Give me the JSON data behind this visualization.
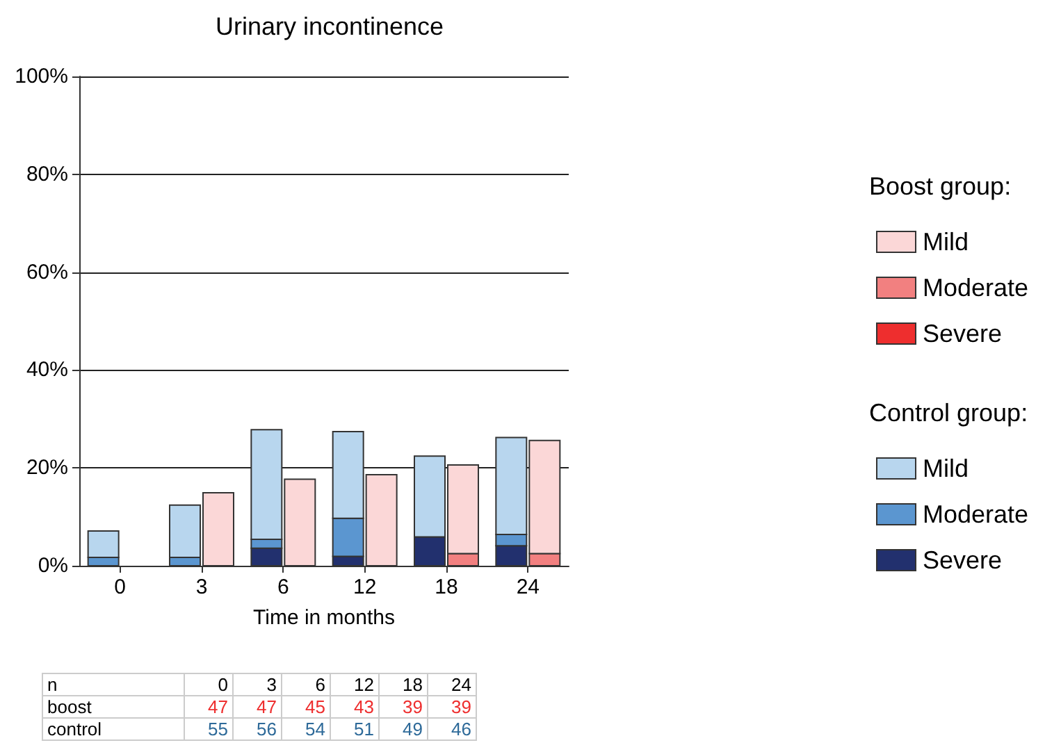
{
  "chart_data": {
    "type": "bar",
    "title": "Urinary incontinence",
    "xlabel": "Time in months",
    "categories": [
      "0",
      "3",
      "6",
      "12",
      "18",
      "24"
    ],
    "legend_title": [
      "Boost group:",
      "Control group:"
    ],
    "series": [
      {
        "name": "Severe",
        "color": "#ee2e2e",
        "values": [
          null,
          null,
          null,
          null,
          null,
          null
        ],
        "base": [
          null,
          null,
          null,
          null,
          null,
          null
        ]
      },
      {
        "name": "Moderate",
        "color": "#f28080",
        "values": [
          null,
          null,
          null,
          null,
          2.5,
          2.5
        ],
        "base": [
          null,
          null,
          null,
          null,
          0,
          0
        ]
      },
      {
        "name": "Mild",
        "color": "#fbd7d7",
        "values": [
          null,
          14.9,
          17.7,
          18.6,
          18.1,
          23.1
        ],
        "base": [
          null,
          0,
          0,
          0,
          2.5,
          2.5
        ]
      },
      {
        "name": "Severe",
        "color": "#22306e",
        "values": [
          null,
          null,
          3.6,
          1.9,
          5.9,
          4.1
        ],
        "base": [
          null,
          null,
          0,
          0,
          0,
          0
        ]
      },
      {
        "name": "Moderate",
        "color": "#5b96d0",
        "values": [
          1.7,
          1.7,
          1.8,
          7.8,
          null,
          2.3
        ],
        "base": [
          0,
          0,
          3.6,
          1.9,
          null,
          4.1
        ]
      },
      {
        "name": "Mild",
        "color": "#b8d6ee",
        "values": [
          5.4,
          10.7,
          22.4,
          17.7,
          16.5,
          19.8
        ],
        "base": [
          1.7,
          1.7,
          5.4,
          9.7,
          5.9,
          6.4
        ]
      }
    ],
    "ylim": [
      0,
      100
    ],
    "yticks": [
      {
        "value": 0,
        "label": "0%"
      },
      {
        "value": 20,
        "label": "20%"
      },
      {
        "value": 40,
        "label": "40%"
      },
      {
        "value": 60,
        "label": "60%"
      },
      {
        "value": 80,
        "label": "80%"
      },
      {
        "value": 100,
        "label": "100%"
      }
    ],
    "grid": "y",
    "legend": "right",
    "annotations": [
      [
        "n",
        "0",
        "3",
        "6",
        "12",
        "18",
        "24"
      ],
      [
        "boost",
        "47",
        "47",
        "45",
        "43",
        "39",
        "39"
      ],
      [
        "control",
        "55",
        "56",
        "54",
        "51",
        "49",
        "46"
      ]
    ]
  }
}
